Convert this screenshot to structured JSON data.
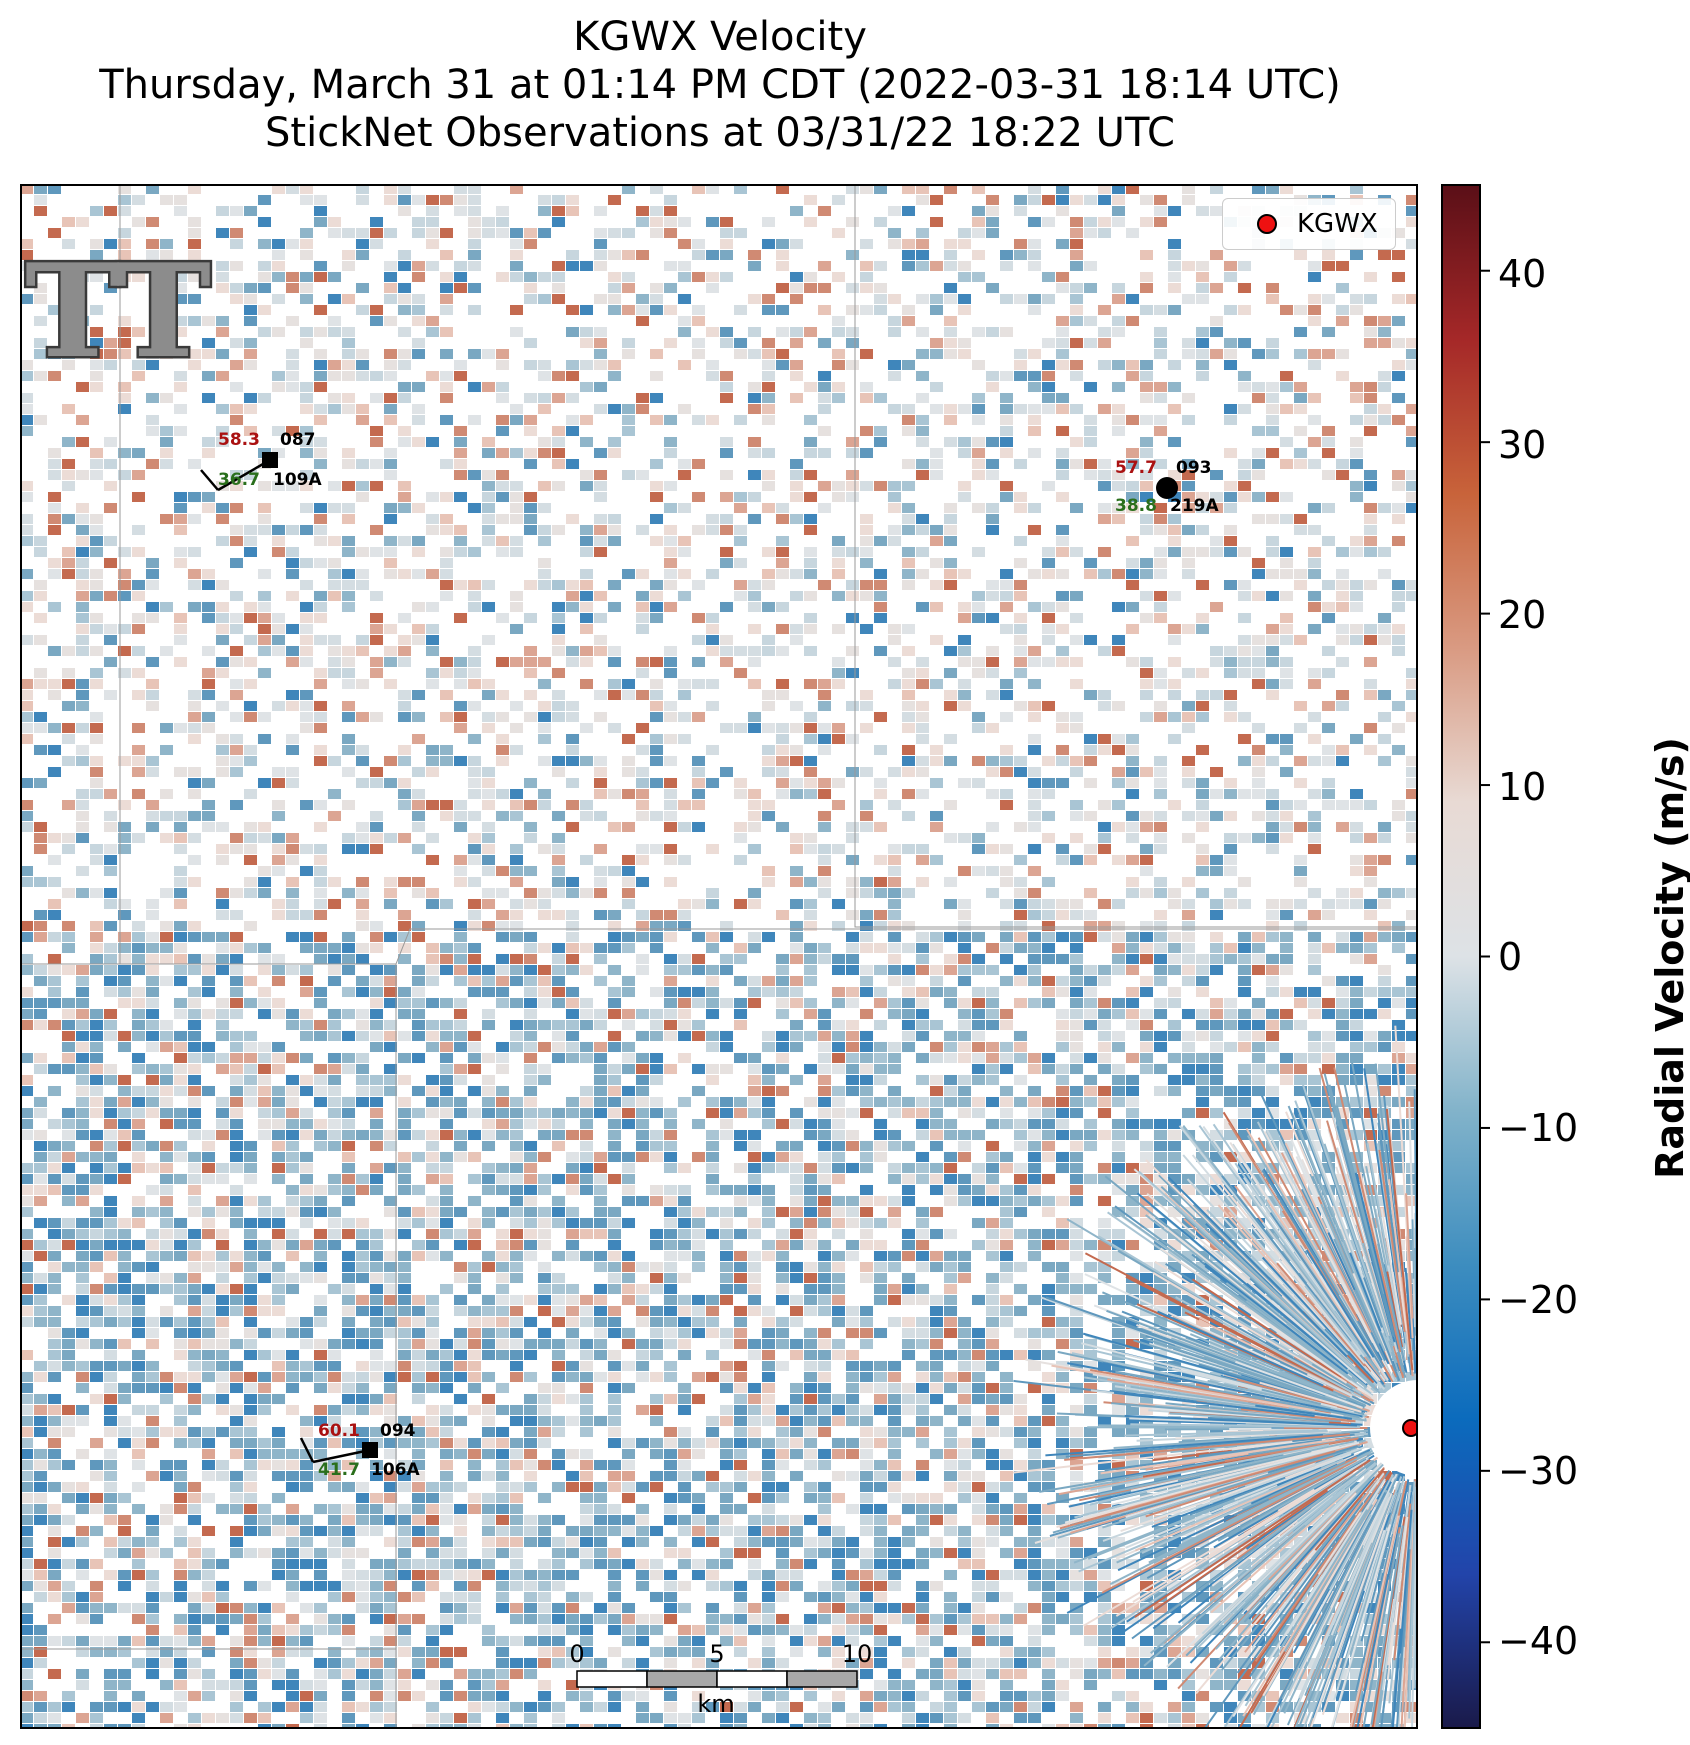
{
  "title": {
    "line1": "KGWX Velocity",
    "line2": "Thursday, March 31 at 01:14 PM CDT (2022-03-31 18:14 UTC)",
    "line3": "StickNet Observations at 03/31/22 18:22 UTC"
  },
  "legend": {
    "label": "KGWX",
    "marker_color": "#ee1111",
    "icon": "red-dot-icon"
  },
  "colorbar": {
    "label": "Radial Velocity (m/s)",
    "ticks": [
      "40",
      "30",
      "20",
      "10",
      "0",
      "−10",
      "−20",
      "−30",
      "−40"
    ],
    "tick_values": [
      40,
      30,
      20,
      10,
      0,
      -10,
      -20,
      -30,
      -40
    ],
    "range": [
      -45,
      45
    ],
    "colors": [
      "#1a1a4a",
      "#2244aa",
      "#0b6bbd",
      "#3d8dbf",
      "#82b3ca",
      "#dde2e6",
      "#e8dad4",
      "#d99a82",
      "#c8633a",
      "#a52828",
      "#5a0f17"
    ]
  },
  "stations": [
    {
      "id": "109A",
      "type": "087",
      "temp": "58.3",
      "dew": "36.7",
      "marker": "square"
    },
    {
      "id": "219A",
      "type": "093",
      "temp": "57.7",
      "dew": "38.8",
      "marker": "circle"
    },
    {
      "id": "106A",
      "type": "094",
      "temp": "60.1",
      "dew": "41.7",
      "marker": "square"
    }
  ],
  "scalebar": {
    "ticks": [
      "0",
      "5",
      "10"
    ],
    "unit": "km"
  },
  "logo": {
    "text": "TT",
    "icon": "texas-tech-logo-icon"
  }
}
